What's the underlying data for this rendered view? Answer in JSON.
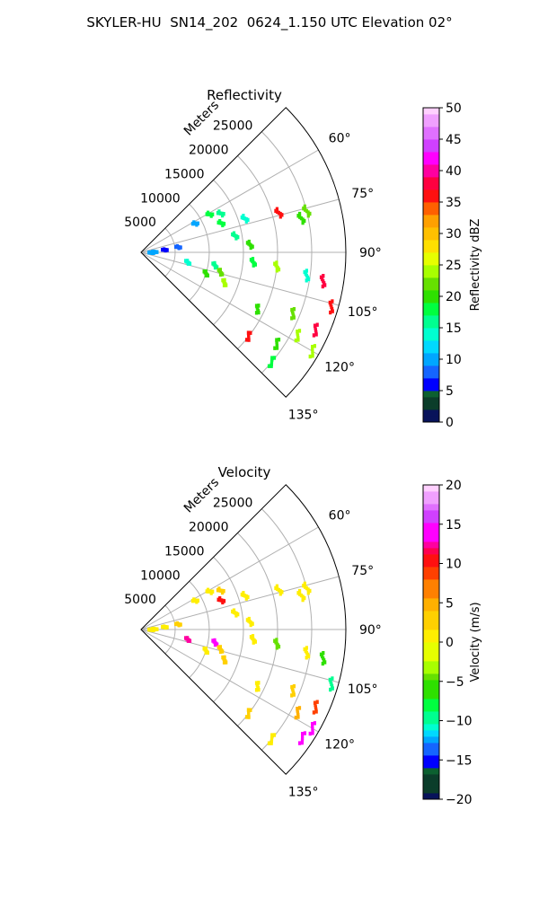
{
  "suptitle": "SKYLER-HU  SN14_202  0624_1.150 UTC Elevation 02°",
  "chart_data": [
    {
      "type": "polar",
      "title": "Reflectivity",
      "range_label": "Meters",
      "r_ticks": [
        5000,
        10000,
        15000,
        20000,
        25000
      ],
      "r_max": 30000,
      "theta_ticks": [
        "60°",
        "75°",
        "90°",
        "105°",
        "120°",
        "135°"
      ],
      "theta_range_deg": [
        45,
        135
      ],
      "grid": true,
      "colorbar": {
        "label": "Reflectivity dBZ",
        "min": 0,
        "max": 50,
        "ticks": [
          "0",
          "5",
          "10",
          "15",
          "20",
          "25",
          "30",
          "35",
          "40",
          "45",
          "50"
        ]
      },
      "echoes": [
        {
          "az": 61,
          "r": 11500,
          "v": 18
        },
        {
          "az": 62,
          "r": 9000,
          "v": 9
        },
        {
          "az": 64,
          "r": 13000,
          "v": 15
        },
        {
          "az": 70,
          "r": 12500,
          "v": 17
        },
        {
          "az": 72,
          "r": 16000,
          "v": 14
        },
        {
          "az": 74,
          "r": 21000,
          "v": 35
        },
        {
          "az": 76,
          "r": 25000,
          "v": 22
        },
        {
          "az": 78,
          "r": 24000,
          "v": 19
        },
        {
          "az": 80,
          "r": 14000,
          "v": 15
        },
        {
          "az": 82,
          "r": 5500,
          "v": 8
        },
        {
          "az": 84,
          "r": 3500,
          "v": 6
        },
        {
          "az": 86,
          "r": 16000,
          "v": 20
        },
        {
          "az": 88,
          "r": 2000,
          "v": 9
        },
        {
          "az": 92,
          "r": 1500,
          "v": 10
        },
        {
          "az": 95,
          "r": 16500,
          "v": 18
        },
        {
          "az": 96,
          "r": 20000,
          "v": 23
        },
        {
          "az": 98,
          "r": 24500,
          "v": 14
        },
        {
          "az": 99,
          "r": 27000,
          "v": 38
        },
        {
          "az": 100,
          "r": 11000,
          "v": 16
        },
        {
          "az": 102,
          "r": 7000,
          "v": 13
        },
        {
          "az": 104,
          "r": 12000,
          "v": 22
        },
        {
          "az": 106,
          "r": 29000,
          "v": 36
        },
        {
          "az": 108,
          "r": 10000,
          "v": 19
        },
        {
          "az": 110,
          "r": 13000,
          "v": 23
        },
        {
          "az": 112,
          "r": 24000,
          "v": 22
        },
        {
          "az": 114,
          "r": 28000,
          "v": 37
        },
        {
          "az": 116,
          "r": 19000,
          "v": 20
        },
        {
          "az": 118,
          "r": 26000,
          "v": 24
        },
        {
          "az": 120,
          "r": 29000,
          "v": 23
        },
        {
          "az": 124,
          "r": 24000,
          "v": 20
        },
        {
          "az": 128,
          "r": 20000,
          "v": 36
        },
        {
          "az": 130,
          "r": 25000,
          "v": 18
        }
      ]
    },
    {
      "type": "polar",
      "title": "Velocity",
      "range_label": "Meters",
      "r_ticks": [
        5000,
        10000,
        15000,
        20000,
        25000
      ],
      "r_max": 30000,
      "theta_ticks": [
        "60°",
        "75°",
        "90°",
        "105°",
        "120°",
        "135°"
      ],
      "theta_range_deg": [
        45,
        135
      ],
      "grid": true,
      "colorbar": {
        "label": "Velocity (m/s)",
        "min": -20,
        "max": 20,
        "ticks": [
          "−20",
          "−15",
          "−10",
          "−5",
          "0",
          "5",
          "10",
          "15",
          "20"
        ]
      },
      "echoes": [
        {
          "az": 61,
          "r": 11500,
          "v": 0
        },
        {
          "az": 62,
          "r": 9000,
          "v": 1
        },
        {
          "az": 64,
          "r": 13000,
          "v": 2
        },
        {
          "az": 70,
          "r": 12500,
          "v": 10
        },
        {
          "az": 72,
          "r": 16000,
          "v": 1
        },
        {
          "az": 74,
          "r": 21000,
          "v": 0
        },
        {
          "az": 76,
          "r": 25000,
          "v": 1
        },
        {
          "az": 78,
          "r": 24000,
          "v": 0
        },
        {
          "az": 80,
          "r": 14000,
          "v": 1
        },
        {
          "az": 82,
          "r": 5500,
          "v": 2
        },
        {
          "az": 84,
          "r": 3500,
          "v": 1
        },
        {
          "az": 86,
          "r": 16000,
          "v": 0
        },
        {
          "az": 88,
          "r": 2000,
          "v": 1
        },
        {
          "az": 92,
          "r": 1500,
          "v": 0
        },
        {
          "az": 95,
          "r": 16500,
          "v": 1
        },
        {
          "az": 96,
          "r": 20000,
          "v": -5
        },
        {
          "az": 98,
          "r": 24500,
          "v": 0
        },
        {
          "az": 99,
          "r": 27000,
          "v": -6
        },
        {
          "az": 100,
          "r": 11000,
          "v": 14
        },
        {
          "az": 102,
          "r": 7000,
          "v": 12
        },
        {
          "az": 104,
          "r": 12000,
          "v": 2
        },
        {
          "az": 106,
          "r": 29000,
          "v": -10
        },
        {
          "az": 108,
          "r": 10000,
          "v": 1
        },
        {
          "az": 110,
          "r": 13000,
          "v": 3
        },
        {
          "az": 112,
          "r": 24000,
          "v": 2
        },
        {
          "az": 114,
          "r": 28000,
          "v": 9
        },
        {
          "az": 116,
          "r": 19000,
          "v": 1
        },
        {
          "az": 118,
          "r": 26000,
          "v": 4
        },
        {
          "az": 120,
          "r": 29000,
          "v": 13
        },
        {
          "az": 124,
          "r": 28500,
          "v": 13
        },
        {
          "az": 128,
          "r": 20000,
          "v": 2
        },
        {
          "az": 130,
          "r": 25000,
          "v": 1
        }
      ]
    }
  ]
}
